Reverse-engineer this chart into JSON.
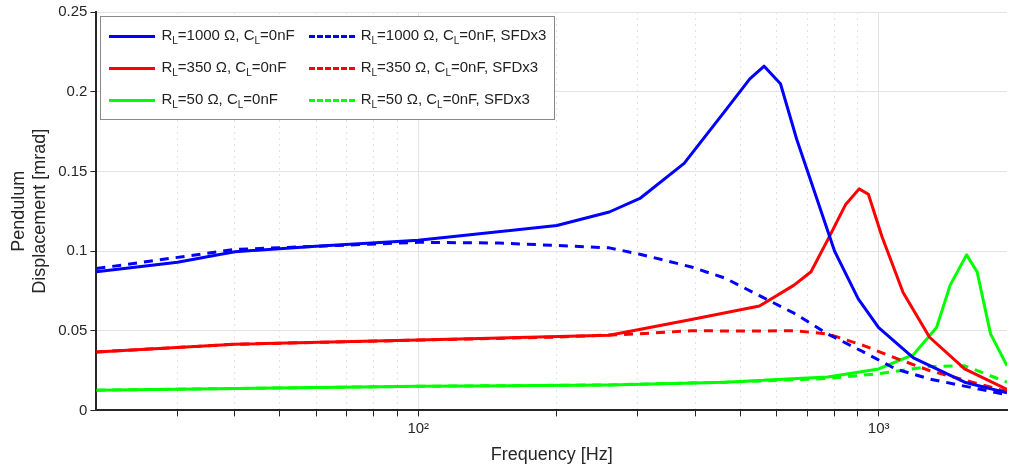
{
  "chart_data": {
    "type": "line",
    "xlabel": "Frequency [Hz]",
    "ylabel": "Pendulum\nDisplacement [mrad]",
    "log": "x",
    "grid": true,
    "legend": "top left",
    "marker": "none",
    "xlim": [
      20,
      1900
    ],
    "ylim": [
      0,
      0.25
    ],
    "xticks": [
      {
        "value": 30,
        "label": null
      },
      {
        "value": 40,
        "label": null
      },
      {
        "value": 50,
        "label": null
      },
      {
        "value": 60,
        "label": null
      },
      {
        "value": 70,
        "label": null
      },
      {
        "value": 80,
        "label": null
      },
      {
        "value": 90,
        "label": null
      },
      {
        "value": 100,
        "label": "10²"
      },
      {
        "value": 200,
        "label": null
      },
      {
        "value": 300,
        "label": null
      },
      {
        "value": 400,
        "label": null
      },
      {
        "value": 500,
        "label": null
      },
      {
        "value": 600,
        "label": null
      },
      {
        "value": 700,
        "label": null
      },
      {
        "value": 800,
        "label": null
      },
      {
        "value": 900,
        "label": null
      },
      {
        "value": 1000,
        "label": "10³"
      }
    ],
    "yticks": [
      0,
      0.05,
      0.1,
      0.15,
      0.2,
      0.25
    ],
    "series": [
      {
        "name": "R$_{L}$=1000 Ω, C$_{L}$=0nF",
        "color": "#0000ff",
        "line_style": "solid",
        "x": [
          20,
          30,
          40,
          60,
          100,
          200,
          260,
          303,
          378,
          464,
          525,
          564,
          612,
          664,
          724,
          802,
          903,
          1000,
          1190,
          1537,
          1900
        ],
        "values": [
          0.087,
          0.093,
          0.0996,
          0.103,
          0.1068,
          0.116,
          0.1245,
          0.133,
          0.155,
          0.188,
          0.208,
          0.216,
          0.205,
          0.17,
          0.138,
          0.1,
          0.07,
          0.052,
          0.033,
          0.0177,
          0.011
        ]
      },
      {
        "name": "R$_{L}$=1000 Ω, C$_{L}$=0nF, SFDx3",
        "color": "#0000ff",
        "line_style": "dashed",
        "x": [
          20,
          40,
          100,
          150,
          200,
          260,
          303,
          392,
          464,
          551,
          655,
          775,
          922,
          1089,
          1290,
          1900
        ],
        "values": [
          0.089,
          0.101,
          0.1055,
          0.105,
          0.1035,
          0.102,
          0.098,
          0.09,
          0.083,
          0.072,
          0.061,
          0.048,
          0.037,
          0.026,
          0.0197,
          0.0098
        ]
      },
      {
        "name": "R$_{L}$=350 Ω, C$_{L}$=0nF",
        "color": "#ff0000",
        "line_style": "solid",
        "x": [
          20,
          40,
          100,
          260,
          392,
          551,
          655,
          713,
          775,
          847,
          907,
          950,
          1017,
          1130,
          1290,
          1537,
          1900
        ],
        "values": [
          0.0367,
          0.0415,
          0.0441,
          0.0472,
          0.057,
          0.0655,
          0.0786,
          0.087,
          0.107,
          0.129,
          0.139,
          0.1356,
          0.109,
          0.074,
          0.0459,
          0.026,
          0.0131
        ]
      },
      {
        "name": "R$_{L}$=350 Ω, C$_{L}$=0nF, SFDx3",
        "color": "#ff0000",
        "line_style": "dashed",
        "x": [
          20,
          40,
          100,
          200,
          300,
          392,
          506,
          655,
          775,
          922,
          1089,
          1290,
          1900
        ],
        "values": [
          0.0367,
          0.0415,
          0.0441,
          0.046,
          0.048,
          0.05,
          0.0498,
          0.05,
          0.048,
          0.041,
          0.0328,
          0.025,
          0.0118
        ]
      },
      {
        "name": "R$_{L}$=50 Ω, C$_{L}$=0nF",
        "color": "#00ff00",
        "line_style": "solid",
        "x": [
          20,
          100,
          260,
          464,
          775,
          1000,
          1190,
          1336,
          1430,
          1552,
          1636,
          1750,
          1900
        ],
        "values": [
          0.0127,
          0.0151,
          0.016,
          0.0177,
          0.021,
          0.026,
          0.035,
          0.052,
          0.0786,
          0.0976,
          0.087,
          0.048,
          0.028
        ]
      },
      {
        "name": "R$_{L}$=50 Ω, C$_{L}$=0nF, SFDx3",
        "color": "#00ff00",
        "line_style": "dashed",
        "x": [
          20,
          100,
          260,
          464,
          775,
          1000,
          1290,
          1537,
          1900
        ],
        "values": [
          0.0127,
          0.0151,
          0.016,
          0.0177,
          0.02,
          0.023,
          0.0275,
          0.028,
          0.0177
        ]
      }
    ]
  }
}
